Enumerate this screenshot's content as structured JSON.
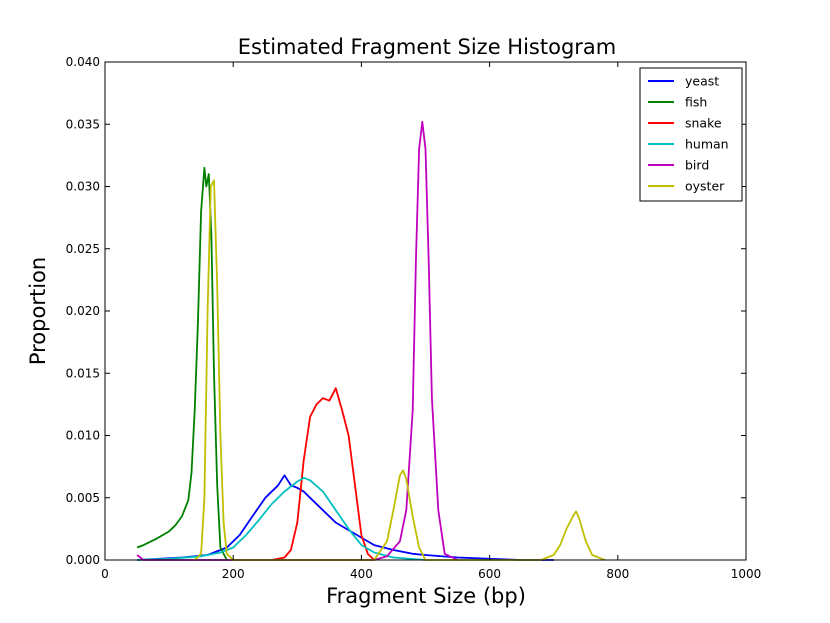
{
  "chart_data": {
    "type": "line",
    "title": "Estimated Fragment Size Histogram",
    "xlabel": "Fragment Size (bp)",
    "ylabel": "Proportion",
    "xlim": [
      0,
      1000
    ],
    "ylim": [
      0,
      0.04
    ],
    "xticks": [
      "0",
      "200",
      "400",
      "600",
      "800",
      "1000"
    ],
    "yticks": [
      "0.000",
      "0.005",
      "0.010",
      "0.015",
      "0.020",
      "0.025",
      "0.030",
      "0.035",
      "0.040"
    ],
    "grid": false,
    "legend_position": "top-right",
    "series": [
      {
        "name": "yeast",
        "color": "#0000ff",
        "x": [
          50,
          120,
          160,
          190,
          210,
          230,
          250,
          270,
          280,
          290,
          300,
          310,
          320,
          340,
          360,
          380,
          400,
          420,
          450,
          480,
          500,
          550,
          600,
          650,
          700
        ],
        "y": [
          0.0,
          0.0002,
          0.0004,
          0.001,
          0.002,
          0.0035,
          0.005,
          0.006,
          0.0068,
          0.006,
          0.0058,
          0.0055,
          0.005,
          0.004,
          0.003,
          0.0024,
          0.0018,
          0.0012,
          0.0008,
          0.0005,
          0.0004,
          0.0002,
          0.0001,
          0.0,
          0.0
        ]
      },
      {
        "name": "fish",
        "color": "#008000",
        "x": [
          50,
          60,
          80,
          100,
          110,
          120,
          130,
          135,
          140,
          145,
          150,
          155,
          158,
          162,
          166,
          170,
          175,
          180,
          190
        ],
        "y": [
          0.001,
          0.0012,
          0.0017,
          0.0023,
          0.0028,
          0.0035,
          0.0048,
          0.007,
          0.012,
          0.019,
          0.028,
          0.0315,
          0.03,
          0.031,
          0.026,
          0.015,
          0.006,
          0.001,
          0.0
        ]
      },
      {
        "name": "snake",
        "color": "#ff0000",
        "x": [
          260,
          280,
          290,
          300,
          310,
          320,
          330,
          340,
          350,
          360,
          370,
          380,
          390,
          400,
          410,
          420
        ],
        "y": [
          0.0,
          0.0002,
          0.0008,
          0.003,
          0.008,
          0.0115,
          0.0125,
          0.013,
          0.0128,
          0.0138,
          0.012,
          0.01,
          0.006,
          0.002,
          0.0005,
          0.0
        ]
      },
      {
        "name": "human",
        "color": "#00bfbf",
        "x": [
          50,
          100,
          150,
          180,
          200,
          220,
          240,
          260,
          280,
          300,
          310,
          320,
          340,
          360,
          380,
          400,
          420,
          450,
          500
        ],
        "y": [
          0.0,
          0.0001,
          0.0003,
          0.0006,
          0.001,
          0.002,
          0.0032,
          0.0045,
          0.0055,
          0.0063,
          0.0066,
          0.0064,
          0.0055,
          0.004,
          0.0025,
          0.0012,
          0.0006,
          0.0002,
          0.0
        ]
      },
      {
        "name": "bird",
        "color": "#bf00bf",
        "x": [
          50,
          60,
          420,
          440,
          460,
          470,
          480,
          485,
          490,
          495,
          500,
          505,
          510,
          520,
          530,
          550
        ],
        "y": [
          0.0004,
          0.0,
          0.0,
          0.0003,
          0.0015,
          0.004,
          0.012,
          0.024,
          0.033,
          0.0352,
          0.033,
          0.024,
          0.013,
          0.004,
          0.0005,
          0.0
        ]
      },
      {
        "name": "oyster",
        "color": "#bfbf00",
        "x": [
          140,
          150,
          155,
          160,
          165,
          170,
          175,
          180,
          185,
          190,
          200,
          420,
          440,
          450,
          460,
          465,
          470,
          480,
          490,
          500,
          680,
          700,
          710,
          720,
          730,
          735,
          740,
          750,
          760,
          780
        ],
        "y": [
          0.0,
          0.0005,
          0.005,
          0.02,
          0.03,
          0.0305,
          0.022,
          0.01,
          0.003,
          0.0005,
          0.0,
          0.0,
          0.0015,
          0.004,
          0.0068,
          0.0072,
          0.0065,
          0.0035,
          0.001,
          0.0,
          0.0,
          0.0004,
          0.0012,
          0.0025,
          0.0035,
          0.0039,
          0.0033,
          0.0015,
          0.0004,
          0.0
        ]
      }
    ]
  }
}
